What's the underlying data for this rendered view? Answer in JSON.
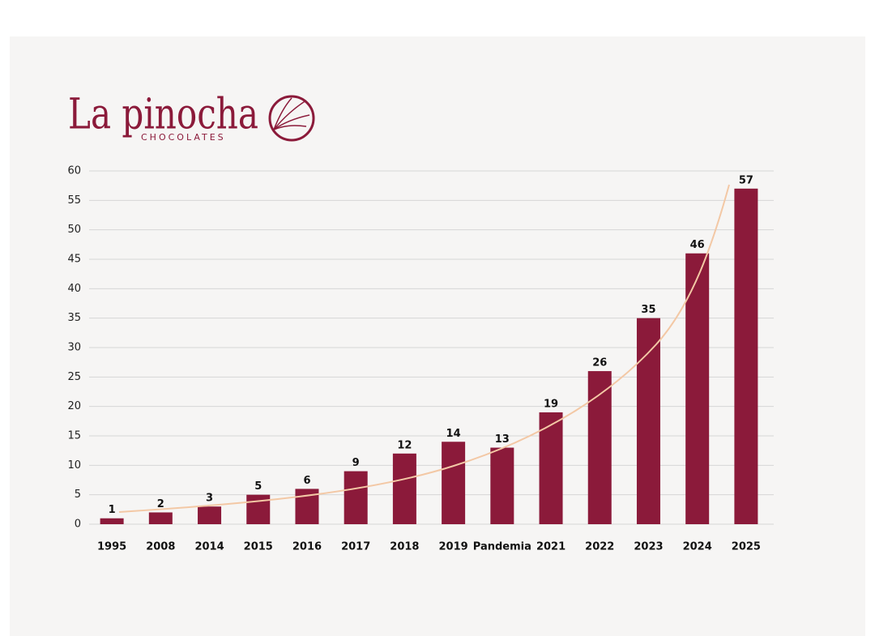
{
  "chart_data": {
    "type": "bar",
    "title": "La pinocha",
    "subtitle": "CHOCOLATES",
    "categories": [
      "1995",
      "2008",
      "2014",
      "2015",
      "2016",
      "2017",
      "2018",
      "2019",
      "Pandemia",
      "2021",
      "2022",
      "2023",
      "2024",
      "2025"
    ],
    "values": [
      1,
      2,
      3,
      5,
      6,
      9,
      12,
      14,
      13,
      19,
      26,
      35,
      46,
      57
    ],
    "color": "#8b1a3a",
    "ylim": [
      0,
      60
    ],
    "yticks": [
      0,
      5,
      10,
      15,
      20,
      25,
      30,
      35,
      40,
      45,
      50,
      55,
      60
    ],
    "grid": true
  }
}
